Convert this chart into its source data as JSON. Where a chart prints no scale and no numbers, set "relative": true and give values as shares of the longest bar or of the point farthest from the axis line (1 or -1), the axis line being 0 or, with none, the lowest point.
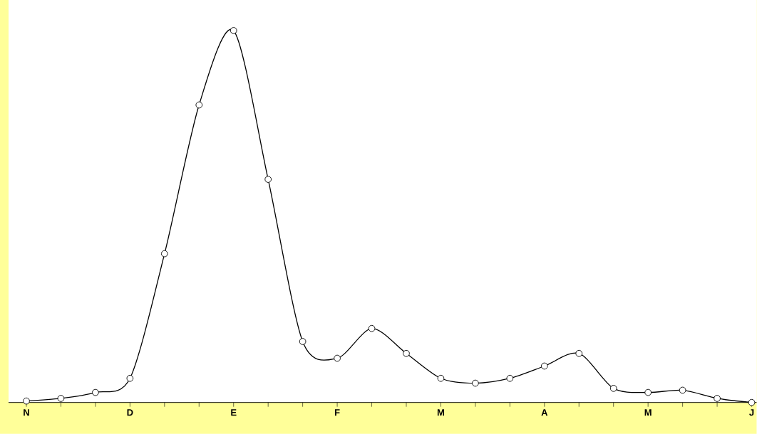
{
  "chart_data": {
    "type": "line",
    "relative": true,
    "marker": "circle",
    "line_style": "solid",
    "color": "#000000",
    "categories": [
      "N",
      null,
      null,
      "D",
      null,
      null,
      "E",
      null,
      null,
      "F",
      null,
      null,
      "M",
      null,
      null,
      "A",
      null,
      null,
      "M",
      null,
      null,
      "J"
    ],
    "values": [
      0.004,
      0.011,
      0.027,
      0.065,
      0.4,
      0.8,
      1,
      0.6,
      0.164,
      0.119,
      0.199,
      0.132,
      0.065,
      0.052,
      0.065,
      0.098,
      0.132,
      0.038,
      0.027,
      0.033,
      0.011,
      0
    ]
  }
}
